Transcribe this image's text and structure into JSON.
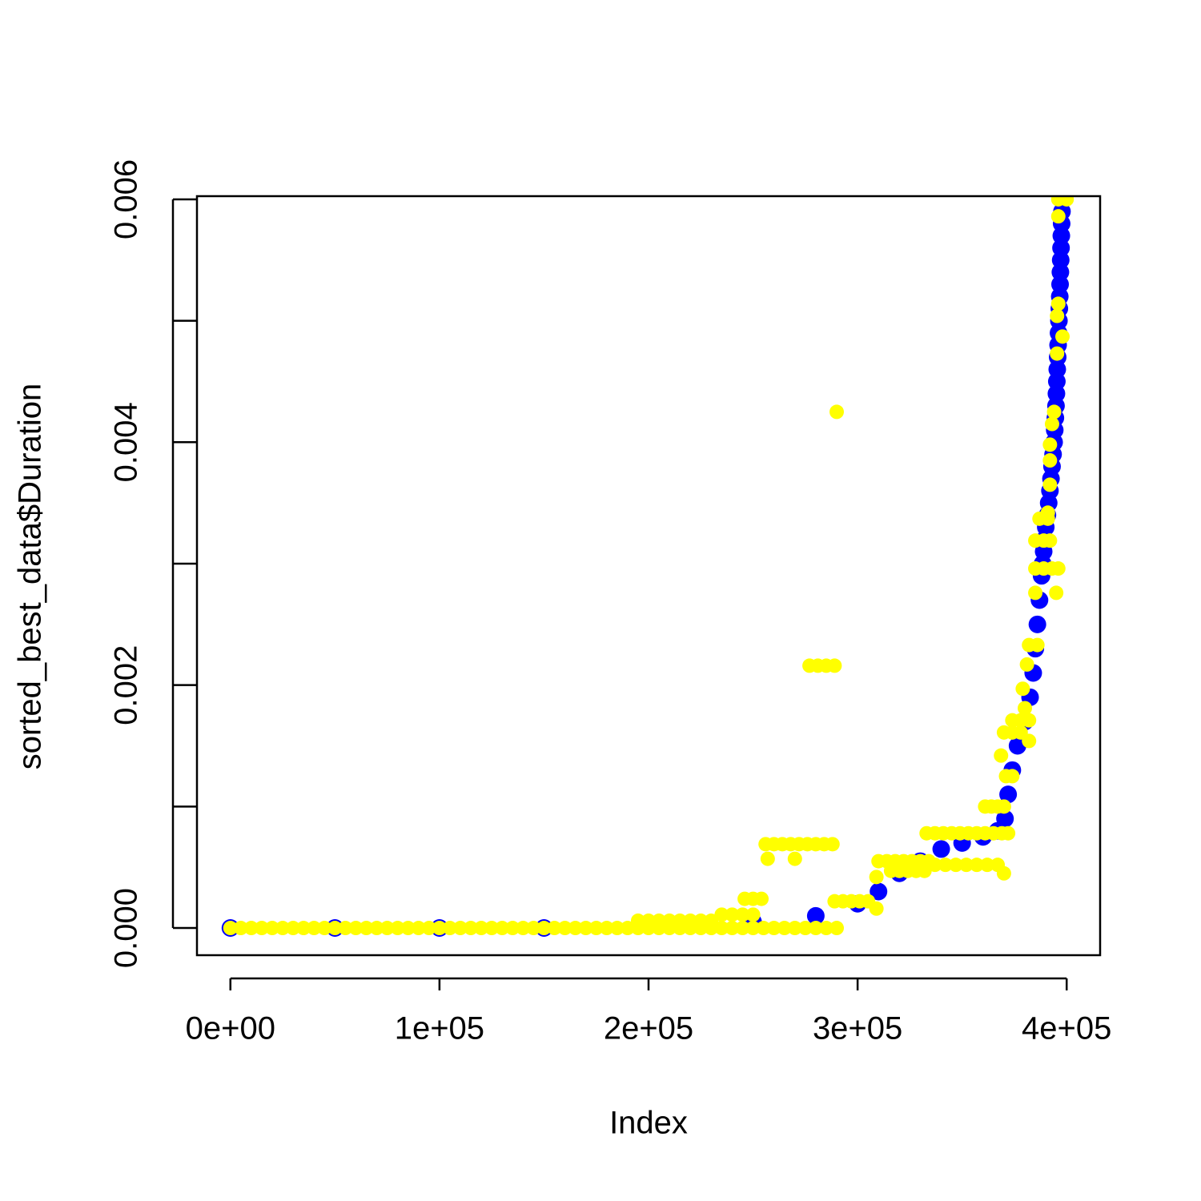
{
  "chart_data": {
    "type": "scatter",
    "x_label": "Index",
    "y_label": "sorted_best_data$Duration",
    "xlim": [
      -16000,
      416000
    ],
    "ylim": [
      -0.000224,
      0.006026
    ],
    "xticks": [
      {
        "value": 0,
        "label": "0e+00"
      },
      {
        "value": 100000,
        "label": "1e+05"
      },
      {
        "value": 200000,
        "label": "2e+05"
      },
      {
        "value": 300000,
        "label": "3e+05"
      },
      {
        "value": 400000,
        "label": "4e+05"
      }
    ],
    "yticks": [
      {
        "value": 0,
        "label": "0.000"
      },
      {
        "value": 0.001,
        "label": null
      },
      {
        "value": 0.002,
        "label": "0.002"
      },
      {
        "value": 0.003,
        "label": null
      },
      {
        "value": 0.004,
        "label": "0.004"
      },
      {
        "value": 0.005,
        "label": null
      },
      {
        "value": 0.006,
        "label": "0.006"
      }
    ],
    "grid": false,
    "series": [
      {
        "color": "#0000ff",
        "x": [
          0,
          50000,
          100000,
          150000,
          200000,
          250000,
          280000,
          300000,
          310000,
          320000,
          330000,
          340000,
          350000,
          360000,
          367000,
          370500,
          372000,
          374000,
          376500,
          380000,
          382500,
          384000,
          385000,
          386000,
          387000,
          388000,
          388500,
          389000,
          389500,
          390000,
          390800,
          391400,
          392000,
          392500,
          393000,
          393500,
          394000,
          394300,
          394600,
          394900,
          395100,
          395300,
          395500,
          395700,
          395900,
          396100,
          396300,
          396500,
          396700,
          396850,
          397000,
          397150,
          397300,
          397450,
          397600,
          397750,
          397900
        ],
        "values": [
          0,
          0,
          0,
          0,
          2e-05,
          5e-05,
          0.0001,
          0.0002,
          0.0003,
          0.00045,
          0.00055,
          0.00065,
          0.0007,
          0.00075,
          0.0008,
          0.0009,
          0.0011,
          0.0013,
          0.0015,
          0.0017,
          0.0019,
          0.0021,
          0.0023,
          0.0025,
          0.0027,
          0.0029,
          0.003,
          0.0031,
          0.0032,
          0.0033,
          0.0034,
          0.0035,
          0.0036,
          0.0037,
          0.0038,
          0.0039,
          0.004,
          0.0041,
          0.0042,
          0.0043,
          0.0044,
          0.0045,
          0.0046,
          0.0047,
          0.0048,
          0.0049,
          0.005,
          0.0051,
          0.0052,
          0.0053,
          0.0054,
          0.0055,
          0.0056,
          0.0057,
          0.0058,
          0.0059,
          0.006
        ]
      },
      {
        "color": "#ffff00",
        "x": [
          0,
          5000,
          10000,
          15000,
          20000,
          25000,
          30000,
          35000,
          40000,
          45000,
          50000,
          55000,
          60000,
          65000,
          70000,
          75000,
          80000,
          85000,
          90000,
          95000,
          100000,
          105000,
          110000,
          115000,
          120000,
          125000,
          130000,
          135000,
          140000,
          145000,
          150000,
          155000,
          160000,
          165000,
          170000,
          175000,
          180000,
          185000,
          190000,
          195000,
          200000,
          205000,
          210000,
          215000,
          220000,
          225000,
          230000,
          235000,
          240000,
          245000,
          250000,
          255000,
          260000,
          265000,
          270000,
          275000,
          280000,
          285000,
          290000,
          195000,
          200000,
          205000,
          210000,
          215000,
          220000,
          225000,
          230000,
          235000,
          240000,
          245000,
          250000,
          246000,
          250000,
          254000,
          256000,
          260000,
          264000,
          268000,
          272000,
          276000,
          280000,
          284000,
          288000,
          257000,
          270000,
          277000,
          281000,
          285000,
          289000,
          290000,
          289000,
          293000,
          297000,
          301000,
          305000,
          309000,
          309000,
          310000,
          314000,
          318000,
          322000,
          326000,
          330000,
          334000,
          316000,
          320000,
          324000,
          328000,
          332000,
          333000,
          337000,
          341000,
          345000,
          349000,
          353000,
          357000,
          361000,
          365000,
          369000,
          372000,
          337000,
          342000,
          347000,
          352000,
          357000,
          362000,
          367000,
          370000,
          361000,
          364000,
          367000,
          370000,
          371000,
          374000,
          368600,
          370000,
          374000,
          378000,
          374000,
          378000,
          382000,
          380000,
          382000,
          379000,
          381000,
          382000,
          386000,
          385000,
          395000,
          385000,
          389000,
          393000,
          396000,
          385000,
          389000,
          392000,
          387000,
          391000,
          391000,
          392000,
          392000,
          392000,
          393000,
          394000,
          395400,
          398000,
          395400,
          396000,
          396000,
          396000,
          400000
        ],
        "values": [
          0,
          0,
          0,
          0,
          0,
          0,
          0,
          0,
          0,
          0,
          0,
          0,
          0,
          0,
          0,
          0,
          0,
          0,
          0,
          0,
          0,
          0,
          0,
          0,
          0,
          0,
          0,
          0,
          0,
          0,
          0,
          0,
          0,
          0,
          0,
          0,
          0,
          0,
          0,
          0,
          0,
          0,
          0,
          0,
          0,
          0,
          0,
          0,
          0,
          0,
          0,
          0,
          0,
          0,
          0,
          0,
          0,
          0,
          0,
          6e-05,
          6e-05,
          6e-05,
          6e-05,
          6e-05,
          6e-05,
          6e-05,
          6e-05,
          0.00011,
          0.00011,
          0.00011,
          0.00011,
          0.00024,
          0.00024,
          0.00024,
          0.00069,
          0.00069,
          0.00069,
          0.00069,
          0.00069,
          0.00069,
          0.00069,
          0.00069,
          0.00069,
          0.00057,
          0.00057,
          0.00216,
          0.00216,
          0.00216,
          0.00216,
          0.00425,
          0.00022,
          0.00022,
          0.00022,
          0.00022,
          0.00022,
          0.00042,
          0.00016,
          0.00055,
          0.00055,
          0.00055,
          0.00055,
          0.00055,
          0.00055,
          0.00055,
          0.00047,
          0.00047,
          0.00047,
          0.00047,
          0.00047,
          0.00078,
          0.00078,
          0.00078,
          0.00078,
          0.00078,
          0.00078,
          0.00078,
          0.00078,
          0.00078,
          0.00078,
          0.00078,
          0.00052,
          0.00052,
          0.00052,
          0.00052,
          0.00052,
          0.00052,
          0.00052,
          0.00045,
          0.001,
          0.001,
          0.001,
          0.001,
          0.00125,
          0.00125,
          0.00142,
          0.00161,
          0.00161,
          0.00161,
          0.00171,
          0.00171,
          0.00171,
          0.00181,
          0.00154,
          0.00197,
          0.00217,
          0.00233,
          0.00233,
          0.00276,
          0.00276,
          0.00296,
          0.00296,
          0.00296,
          0.00296,
          0.00319,
          0.00319,
          0.00319,
          0.00337,
          0.00337,
          0.00342,
          0.00365,
          0.00385,
          0.00398,
          0.00415,
          0.00425,
          0.00473,
          0.00487,
          0.00504,
          0.00514,
          0.00586,
          0.006,
          0.006
        ]
      }
    ]
  }
}
